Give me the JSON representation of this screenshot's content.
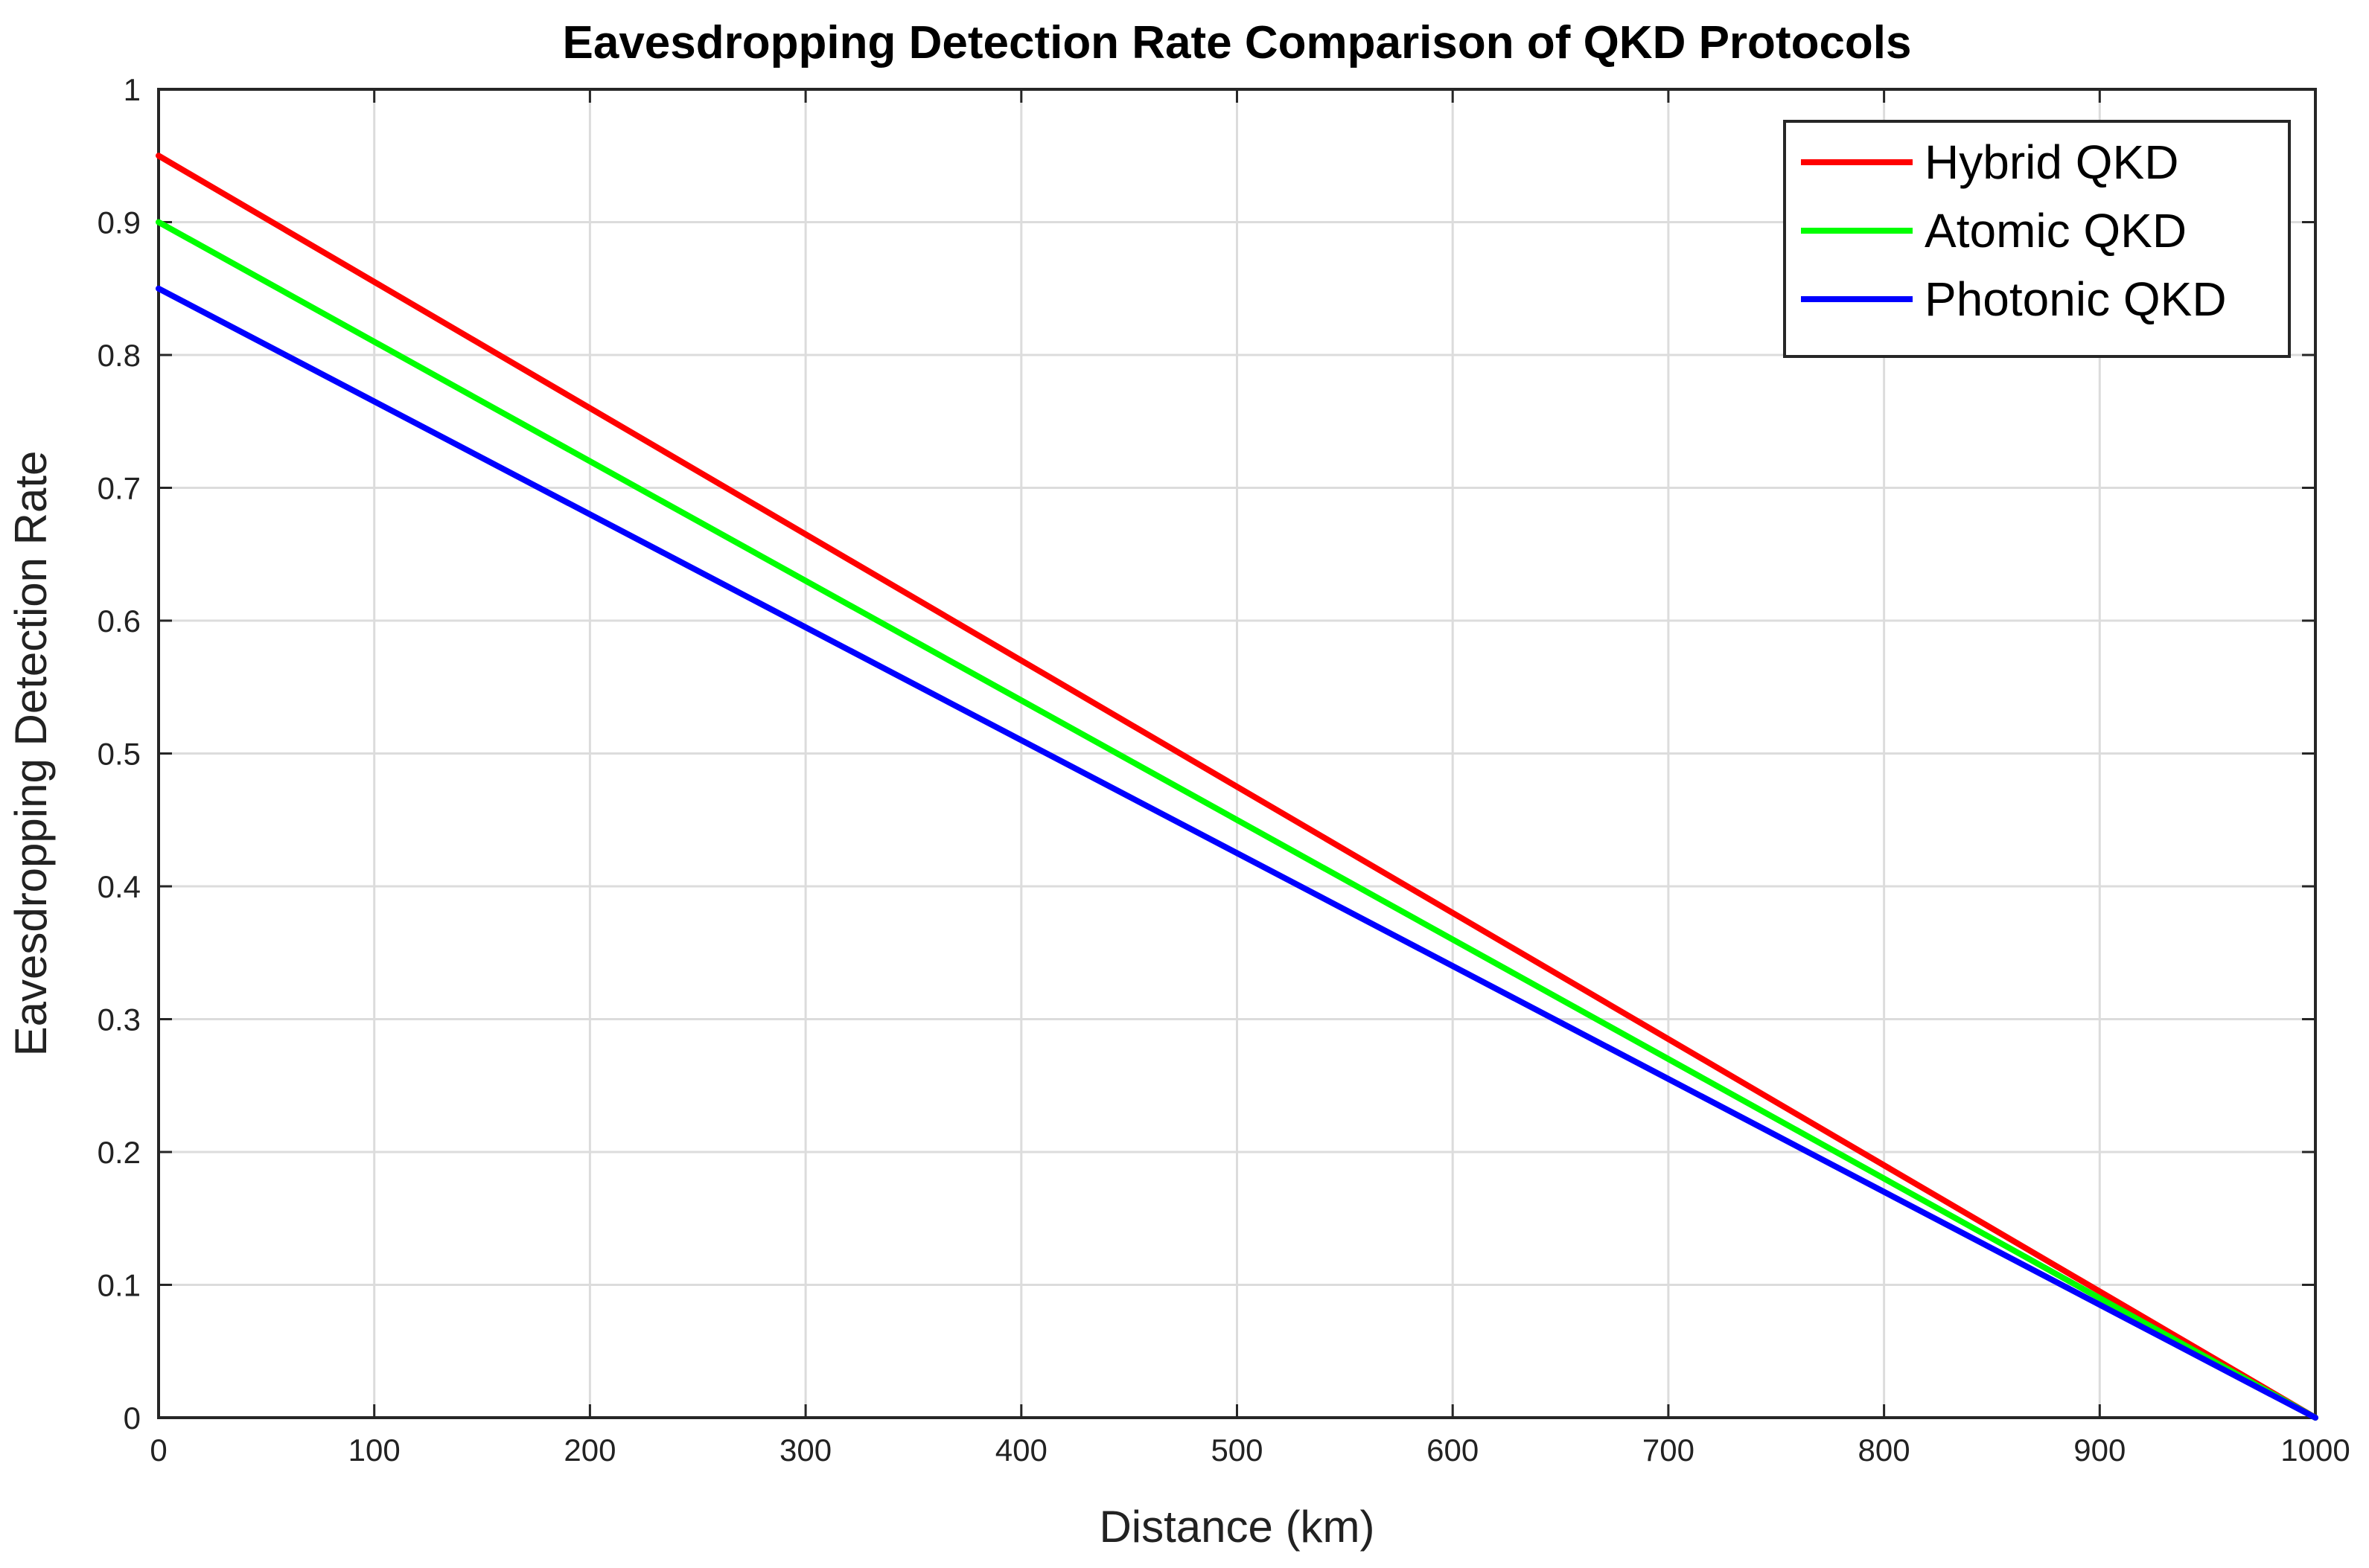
{
  "chart_data": {
    "type": "line",
    "title": "Eavesdropping Detection Rate Comparison of QKD Protocols",
    "xlabel": "Distance (km)",
    "ylabel": "Eavesdropping Detection Rate",
    "xlim": [
      0,
      1000
    ],
    "ylim": [
      0,
      1
    ],
    "xticks": [
      0,
      100,
      200,
      300,
      400,
      500,
      600,
      700,
      800,
      900,
      1000
    ],
    "yticks": [
      0,
      0.1,
      0.2,
      0.3,
      0.4,
      0.5,
      0.6,
      0.7,
      0.8,
      0.9,
      1
    ],
    "xtick_labels": [
      "0",
      "100",
      "200",
      "300",
      "400",
      "500",
      "600",
      "700",
      "800",
      "900",
      "1000"
    ],
    "ytick_labels": [
      "0",
      "0.1",
      "0.2",
      "0.3",
      "0.4",
      "0.5",
      "0.6",
      "0.7",
      "0.8",
      "0.9",
      "1"
    ],
    "grid": true,
    "legend_position": "top-right",
    "series": [
      {
        "name": "Hybrid QKD",
        "color": "#ff0000",
        "x": [
          0,
          1000
        ],
        "y": [
          0.95,
          0
        ]
      },
      {
        "name": "Atomic QKD",
        "color": "#00ff00",
        "x": [
          0,
          1000
        ],
        "y": [
          0.9,
          0
        ]
      },
      {
        "name": "Photonic QKD",
        "color": "#0000ff",
        "x": [
          0,
          1000
        ],
        "y": [
          0.85,
          0
        ]
      }
    ]
  }
}
